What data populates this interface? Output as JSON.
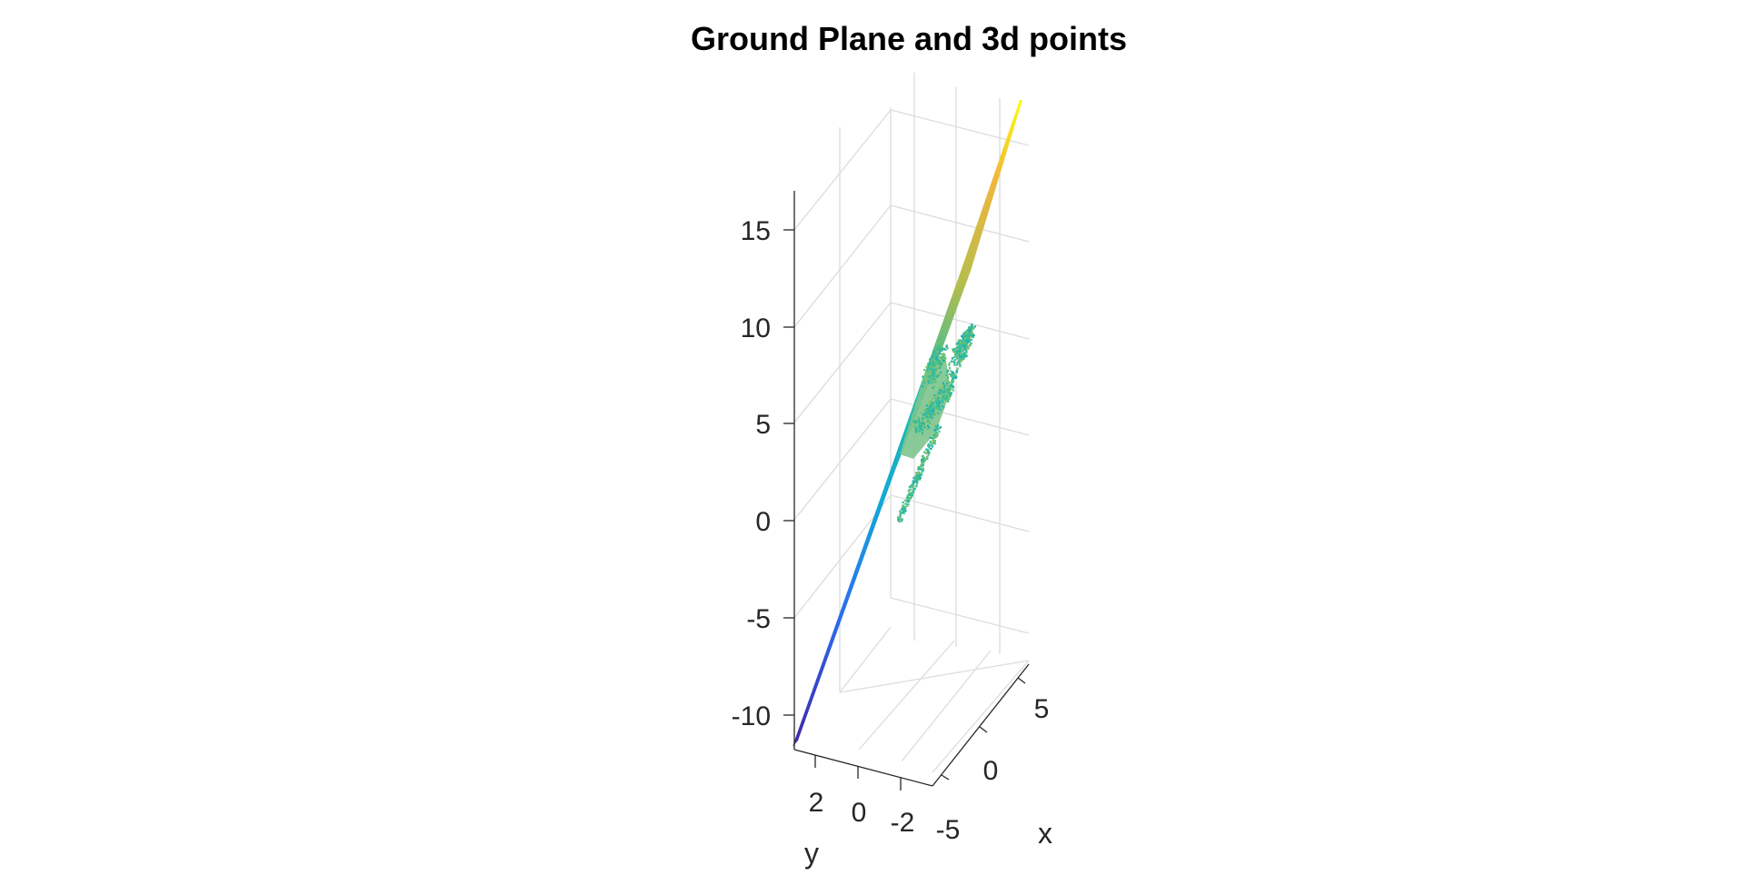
{
  "chart_data": {
    "type": "scatter",
    "title": "Ground Plane and 3d points",
    "xlabel": "x",
    "ylabel": "y",
    "zlabel": "",
    "x_ticks": [
      "-5",
      "0",
      "5"
    ],
    "y_ticks": [
      "2",
      "0",
      "-2"
    ],
    "z_ticks": [
      "15",
      "10",
      "5",
      "0",
      "-5",
      "-10"
    ],
    "xlim": [
      -6,
      7
    ],
    "ylim": [
      -3,
      3.5
    ],
    "zlim": [
      -12,
      22
    ],
    "colormap": [
      "#3e26a8",
      "#2d6cf0",
      "#12a8d5",
      "#22bea8",
      "#8bc55c",
      "#f0b73e",
      "#f9fb0e"
    ],
    "grid": true,
    "series": [
      {
        "type": "surface",
        "z_range": [
          -12,
          22
        ]
      },
      {
        "type": "point-cloud",
        "z_range": [
          -1,
          6.5
        ]
      }
    ]
  }
}
